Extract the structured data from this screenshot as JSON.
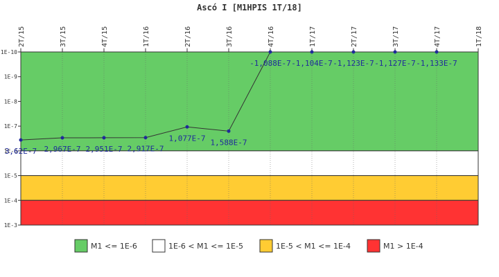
{
  "chart_data": {
    "type": "line",
    "title": "Ascó I [M1HPIS 1T/18]",
    "xlabel": "",
    "ylabel": "",
    "categories": [
      "2T/15",
      "3T/15",
      "4T/15",
      "1T/16",
      "2T/16",
      "3T/16",
      "4T/16",
      "1T/17",
      "2T/17",
      "3T/17",
      "4T/17",
      "1T/18"
    ],
    "series": [
      {
        "name": "",
        "values": [
          3.62e-07,
          2.967e-07,
          2.951e-07,
          2.917e-07,
          1.077e-07,
          1.588e-07,
          -1.088e-07,
          -1.104e-07,
          -1.123e-07,
          -1.127e-07,
          -1.133e-07,
          null
        ],
        "labels": [
          "3,62E-7",
          "2,967E-7",
          "2,951E-7",
          "2,917E-7",
          "1,077E-7",
          "1,588E-7",
          "-1,088E-7",
          "-1,104E-7",
          "-1,123E-7",
          "-1,127E-7",
          "-1,133E-7",
          ""
        ]
      }
    ],
    "y_scale": "log-inverted",
    "y_ticks": [
      "1E-10",
      "1E-9",
      "1E-8",
      "1E-7",
      "1E-6",
      "1E-5",
      "1E-4",
      "1E-3"
    ],
    "ylim": [
      1e-10,
      0.001
    ],
    "bands": [
      {
        "from": 1e-10,
        "to": 1e-06,
        "color": "#66cc66"
      },
      {
        "from": 1e-06,
        "to": 1e-05,
        "color": "#ffffff"
      },
      {
        "from": 1e-05,
        "to": 0.0001,
        "color": "#ffcc33"
      },
      {
        "from": 0.0001,
        "to": 0.001,
        "color": "#ff3333"
      }
    ],
    "legend": {
      "placement": "bottom",
      "items": [
        {
          "label": "M1 <= 1E-6",
          "color": "#66cc66"
        },
        {
          "label": "1E-6 < M1 <= 1E-5",
          "color": "#ffffff"
        },
        {
          "label": "1E-5 < M1 <= 1E-4",
          "color": "#ffcc33"
        },
        {
          "label": "M1 > 1E-4",
          "color": "#ff3333"
        }
      ]
    },
    "line_color": "#333333",
    "point_color": "#1f2a9a"
  }
}
